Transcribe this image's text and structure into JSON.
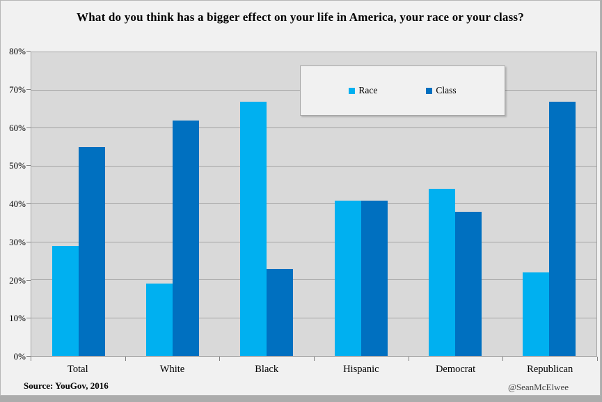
{
  "title": "What do you think has a bigger effect on your life in America, your race or your class?",
  "source": "Source: YouGov, 2016",
  "credit": "@SeanMcElwee",
  "colors": {
    "race_series": "#00b0f0",
    "class_series": "#0070c0",
    "plot_background": "#d9d9d9",
    "page_background": "#f1f1f1",
    "gridline": "#a3a3a3"
  },
  "chart_data": {
    "type": "bar",
    "title": "What do you think has a bigger effect on your life in America, your race or your class?",
    "categories": [
      "Total",
      "White",
      "Black",
      "Hispanic",
      "Democrat",
      "Republican"
    ],
    "series": [
      {
        "name": "Race",
        "color": "#00b0f0",
        "values": [
          29,
          19,
          67,
          41,
          44,
          22
        ]
      },
      {
        "name": "Class",
        "color": "#0070c0",
        "values": [
          55,
          62,
          23,
          41,
          38,
          67
        ]
      }
    ],
    "xlabel": "",
    "ylabel": "",
    "ylim": [
      0,
      80
    ],
    "ytick_step": 10,
    "ytick_labels": [
      "0%",
      "10%",
      "20%",
      "30%",
      "40%",
      "50%",
      "60%",
      "70%",
      "80%"
    ],
    "grid": true,
    "legend_position": "top-center"
  }
}
